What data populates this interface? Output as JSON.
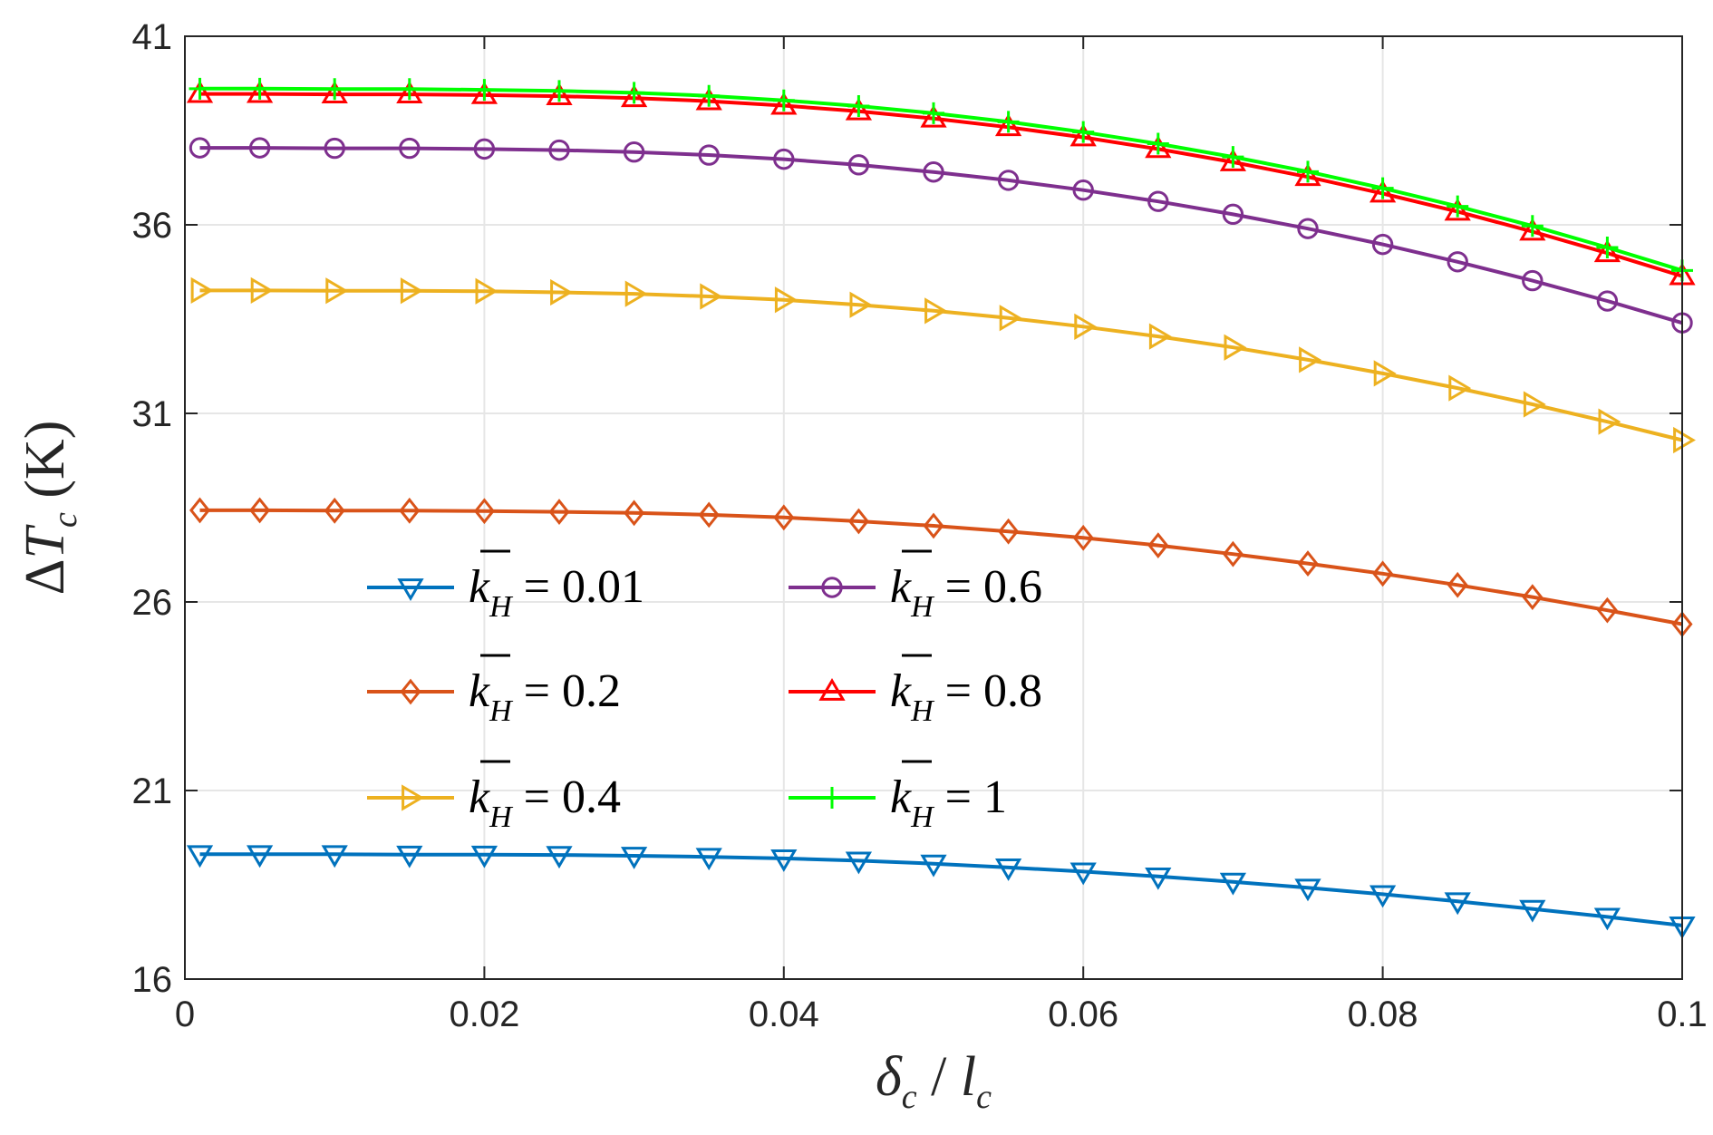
{
  "chart_data": {
    "type": "line",
    "title": "",
    "xlabel": "δc / lc",
    "ylabel": "ΔTc (K)",
    "xlim": [
      0,
      0.1
    ],
    "ylim": [
      16,
      41
    ],
    "xticks": [
      0,
      0.02,
      0.04,
      0.06,
      0.08,
      0.1
    ],
    "xtick_labels": [
      "0",
      "0.02",
      "0.04",
      "0.06",
      "0.08",
      "0.1"
    ],
    "yticks": [
      16,
      21,
      26,
      31,
      36,
      41
    ],
    "ytick_labels": [
      "16",
      "21",
      "26",
      "31",
      "36",
      "41"
    ],
    "grid": true,
    "legend_position": "center-left",
    "x": [
      0.001,
      0.005,
      0.01,
      0.015,
      0.02,
      0.025,
      0.03,
      0.035,
      0.04,
      0.045,
      0.05,
      0.055,
      0.06,
      0.065,
      0.07,
      0.075,
      0.08,
      0.085,
      0.09,
      0.095,
      0.1
    ],
    "series": [
      {
        "name": "k̄H = 0.01",
        "value_label": "0.01",
        "color": "#0072BD",
        "marker": "triangle-down",
        "values": [
          19.31,
          19.31,
          19.31,
          19.3,
          19.3,
          19.29,
          19.27,
          19.24,
          19.2,
          19.14,
          19.06,
          18.96,
          18.85,
          18.72,
          18.58,
          18.42,
          18.25,
          18.06,
          17.86,
          17.65,
          17.42
        ]
      },
      {
        "name": "k̄H = 0.2",
        "value_label": "0.2",
        "color": "#D95319",
        "marker": "diamond",
        "values": [
          28.43,
          28.43,
          28.42,
          28.42,
          28.41,
          28.39,
          28.36,
          28.31,
          28.24,
          28.14,
          28.02,
          27.87,
          27.7,
          27.5,
          27.27,
          27.02,
          26.75,
          26.45,
          26.13,
          25.78,
          25.41
        ]
      },
      {
        "name": "k̄H = 0.4",
        "value_label": "0.4",
        "color": "#EDB120",
        "marker": "triangle-right",
        "values": [
          34.26,
          34.26,
          34.25,
          34.25,
          34.24,
          34.21,
          34.17,
          34.1,
          34.01,
          33.88,
          33.72,
          33.53,
          33.3,
          33.04,
          32.75,
          32.42,
          32.06,
          31.67,
          31.24,
          30.78,
          30.29
        ]
      },
      {
        "name": "k̄H = 0.6",
        "value_label": "0.6",
        "color": "#7E2F8E",
        "marker": "circle",
        "values": [
          38.04,
          38.04,
          38.03,
          38.03,
          38.01,
          37.98,
          37.93,
          37.85,
          37.74,
          37.59,
          37.4,
          37.18,
          36.92,
          36.62,
          36.28,
          35.9,
          35.48,
          35.02,
          34.52,
          33.98,
          33.4
        ]
      },
      {
        "name": "k̄H = 0.8",
        "value_label": "0.8",
        "color": "#FF0000",
        "marker": "triangle-up",
        "values": [
          39.47,
          39.47,
          39.46,
          39.46,
          39.44,
          39.41,
          39.36,
          39.28,
          39.16,
          39.01,
          38.82,
          38.59,
          38.32,
          38.01,
          37.66,
          37.27,
          36.83,
          36.35,
          35.82,
          35.25,
          34.64
        ]
      },
      {
        "name": "k̄H = 1",
        "value_label": "1",
        "color": "#00FF00",
        "marker": "plus",
        "values": [
          39.61,
          39.61,
          39.6,
          39.6,
          39.58,
          39.55,
          39.5,
          39.42,
          39.3,
          39.15,
          38.96,
          38.73,
          38.46,
          38.15,
          37.8,
          37.41,
          36.97,
          36.49,
          35.97,
          35.4,
          34.79
        ]
      }
    ]
  }
}
